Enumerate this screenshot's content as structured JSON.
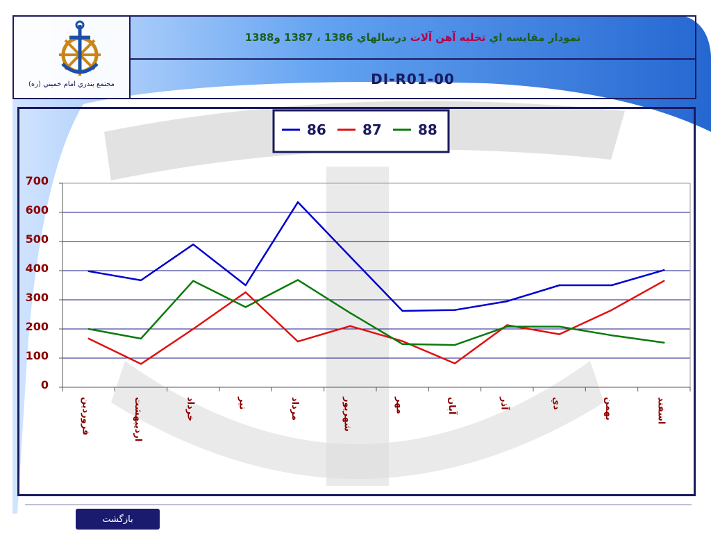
{
  "header": {
    "title_parts": [
      {
        "text": "نمودار مقايسه اي",
        "color": "#1b5e20"
      },
      {
        "text": " تخليه آهن آلات ",
        "color": "#b0004a"
      },
      {
        "text": "درسالهاي 1386 ، 1387 و1388",
        "color": "#1b5e20"
      }
    ],
    "doc_code": "DI-R01-00",
    "org_name": "مجتمع بندري امام خميني (ره)",
    "logo_icon": "anchor-ship-wheel-icon"
  },
  "footer": {
    "back_label": "بازگشت",
    "back_color": "#1a1a6e"
  },
  "chart_data": {
    "type": "line",
    "categories": [
      "فروردين",
      "ارديبهشت",
      "خرداد",
      "تير",
      "مرداد",
      "شهريور",
      "مهر",
      "آبان",
      "آذر",
      "دي",
      "بهمن",
      "اسفند"
    ],
    "series": [
      {
        "name": "86",
        "color": "#0000cc",
        "values": [
          398,
          367,
          490,
          350,
          635,
          448,
          262,
          265,
          295,
          350,
          350,
          402
        ]
      },
      {
        "name": "87",
        "color": "#e01010",
        "values": [
          167,
          80,
          200,
          326,
          157,
          210,
          158,
          82,
          213,
          182,
          265,
          365
        ]
      },
      {
        "name": "88",
        "color": "#0b7a0b",
        "values": [
          200,
          167,
          365,
          275,
          368,
          255,
          148,
          145,
          208,
          208,
          178,
          153
        ]
      }
    ],
    "y_ticks": [
      "700",
      "600",
      "500",
      "400",
      "300",
      "200",
      "100",
      "0"
    ],
    "ylim": [
      0,
      700
    ],
    "grid": true,
    "legend_position": "top-center"
  }
}
